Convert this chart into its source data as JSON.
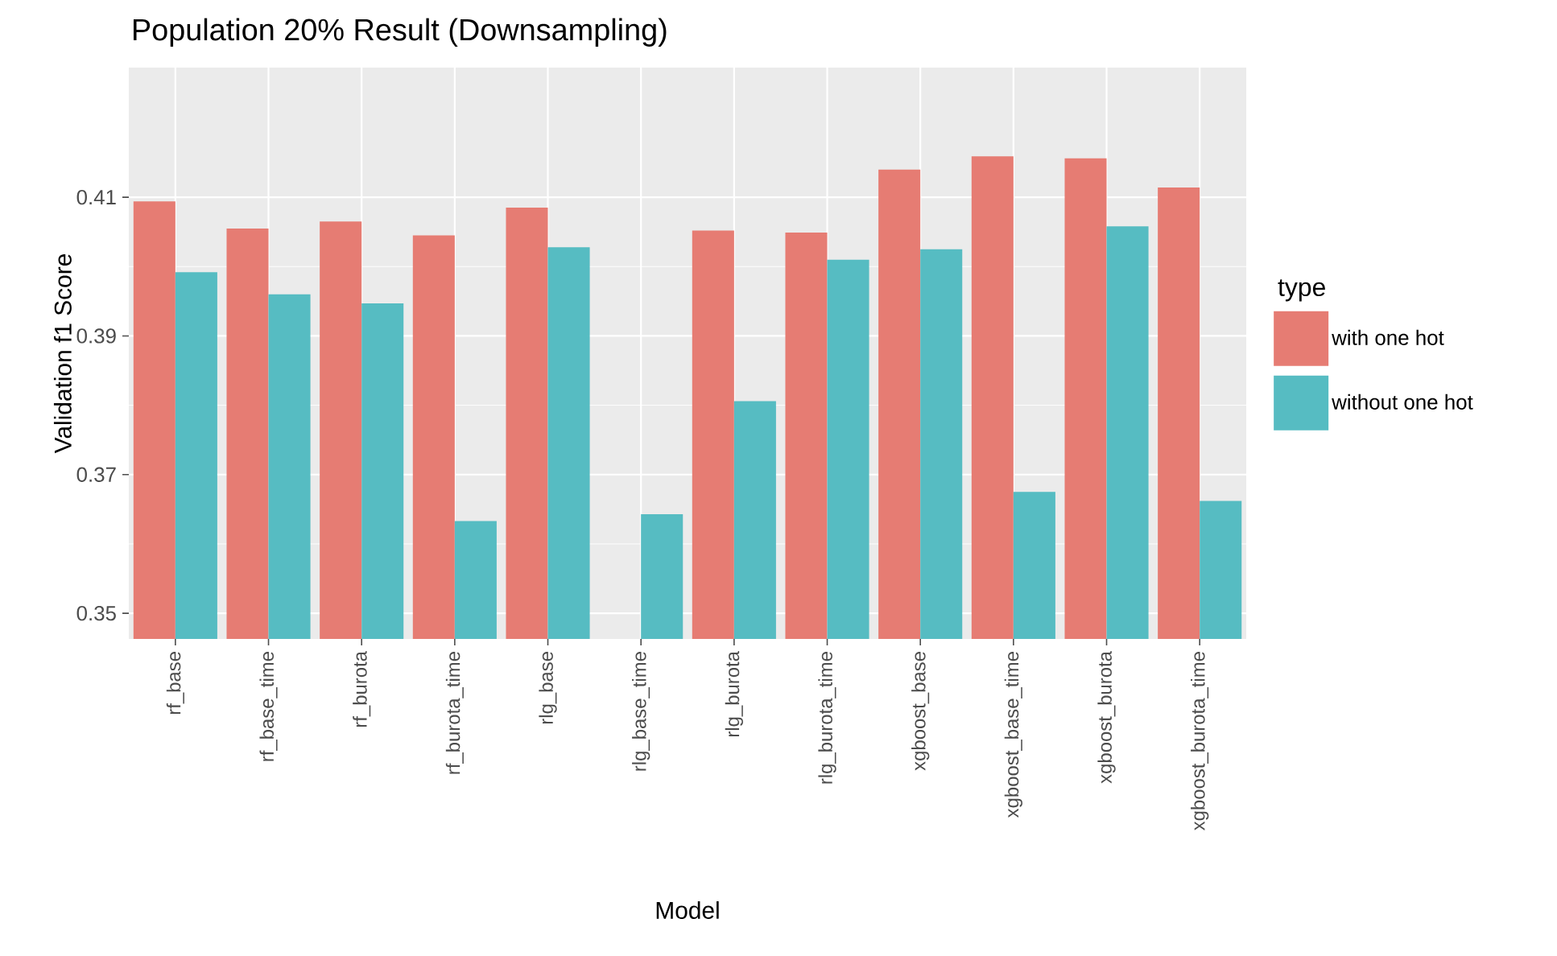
{
  "chart_data": {
    "type": "bar",
    "title": "Population 20% Result (Downsampling)",
    "xlabel": "Model",
    "ylabel": "Validation f1 Score",
    "legend_title": "type",
    "categories": [
      "rf_base",
      "rf_base_time",
      "rf_burota",
      "rf_burota_time",
      "rlg_base",
      "rlg_base_time",
      "rlg_burota",
      "rlg_burota_time",
      "xgboost_base",
      "xgboost_base_time",
      "xgboost_burota",
      "xgboost_burota_time"
    ],
    "series": [
      {
        "name": "with one hot",
        "color": "#e67c73",
        "values": [
          0.4094,
          0.4055,
          0.4065,
          0.4045,
          0.4085,
          null,
          0.4052,
          0.4049,
          0.414,
          0.4159,
          0.4156,
          0.4114
        ]
      },
      {
        "name": "without one hot",
        "color": "#56bcc2",
        "values": [
          0.3992,
          0.396,
          0.3947,
          0.3633,
          0.4028,
          0.3643,
          0.3806,
          0.401,
          0.4025,
          0.3675,
          0.4058,
          0.3662
        ]
      }
    ],
    "ylim": [
      0.3463,
      0.4287
    ],
    "yticks": [
      0.35,
      0.37,
      0.39,
      0.41
    ],
    "grid": true,
    "legend": "right"
  }
}
